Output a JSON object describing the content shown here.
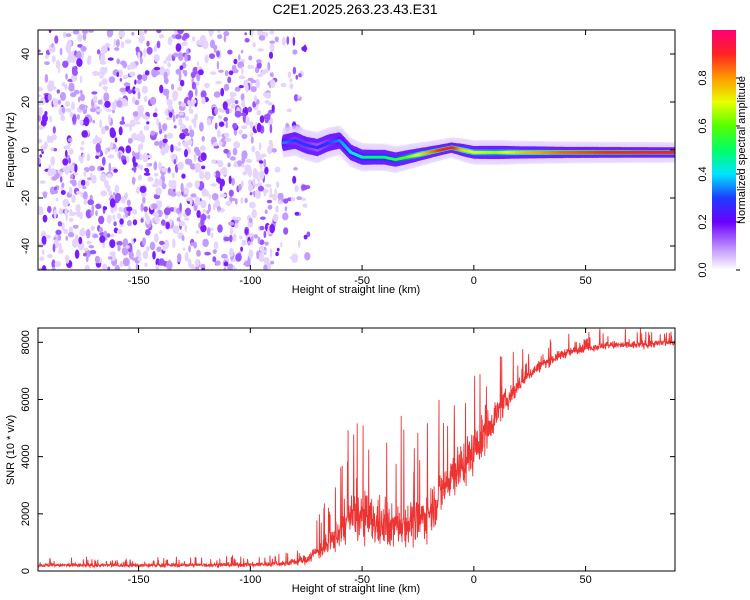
{
  "title": "C2E1.2025.263.23.43.E31",
  "chart_data": [
    {
      "type": "heatmap",
      "title": "C2E1.2025.263.23.43.E31",
      "xlabel": "Height of straight line (km)",
      "ylabel": "Frequency (Hz)",
      "xlim": [
        -195,
        90
      ],
      "ylim": [
        -50,
        50
      ],
      "xticks": [
        -150,
        -100,
        -50,
        0,
        50
      ],
      "yticks": [
        -40,
        -20,
        0,
        20,
        40
      ],
      "ridge": {
        "x": [
          -85,
          -80,
          -75,
          -70,
          -65,
          -60,
          -55,
          -50,
          -45,
          -40,
          -35,
          -30,
          -25,
          -20,
          -15,
          -10,
          -5,
          0,
          10,
          20,
          40,
          60,
          90
        ],
        "freq": [
          3,
          4,
          2,
          1,
          3,
          4,
          -1,
          -3,
          -3,
          -3,
          -4,
          -3,
          -2,
          -1,
          0,
          1,
          0,
          -1,
          -1,
          -1,
          -1,
          -1,
          -1
        ],
        "amplitude": [
          0.35,
          0.3,
          0.3,
          0.25,
          0.3,
          0.35,
          0.4,
          0.45,
          0.5,
          0.5,
          0.55,
          0.6,
          0.7,
          0.8,
          0.9,
          0.95,
          0.75,
          0.7,
          0.65,
          0.75,
          0.85,
          0.9,
          0.95
        ]
      },
      "noise_region": [
        -195,
        -88
      ],
      "colorbar": {
        "label": "Normalized spectral amplitude",
        "range": [
          0,
          1
        ],
        "ticks": [
          "0.0",
          "0.2",
          "0.4",
          "0.6",
          "0.8"
        ]
      }
    },
    {
      "type": "line",
      "xlabel": "Height of straight line (km)",
      "ylabel": "SNR (10 * v/v)",
      "xlim": [
        -195,
        90
      ],
      "ylim": [
        0,
        8500
      ],
      "xticks": [
        -150,
        -100,
        -50,
        0,
        50
      ],
      "yticks": [
        0,
        2000,
        4000,
        6000,
        8000
      ],
      "color": "#ee3333",
      "series": [
        {
          "name": "SNR",
          "x": [
            -195,
            -150,
            -100,
            -85,
            -75,
            -70,
            -65,
            -60,
            -55,
            -50,
            -45,
            -40,
            -35,
            -30,
            -25,
            -20,
            -15,
            -10,
            -5,
            0,
            5,
            10,
            15,
            20,
            25,
            30,
            40,
            50,
            60,
            70,
            80,
            90
          ],
          "y": [
            200,
            200,
            220,
            260,
            400,
            700,
            900,
            1400,
            1900,
            1900,
            1700,
            1500,
            1600,
            1700,
            1700,
            2100,
            2700,
            3400,
            3700,
            4200,
            4800,
            5500,
            6000,
            6500,
            6900,
            7200,
            7600,
            7800,
            7900,
            7900,
            7950,
            8000
          ],
          "spread": [
            120,
            120,
            140,
            160,
            300,
            500,
            800,
            1100,
            1500,
            1600,
            1500,
            1300,
            1300,
            1400,
            1400,
            1500,
            1500,
            1500,
            1500,
            1400,
            1200,
            900,
            700,
            500,
            400,
            350,
            300,
            250,
            250,
            250,
            250,
            250
          ]
        }
      ]
    }
  ]
}
